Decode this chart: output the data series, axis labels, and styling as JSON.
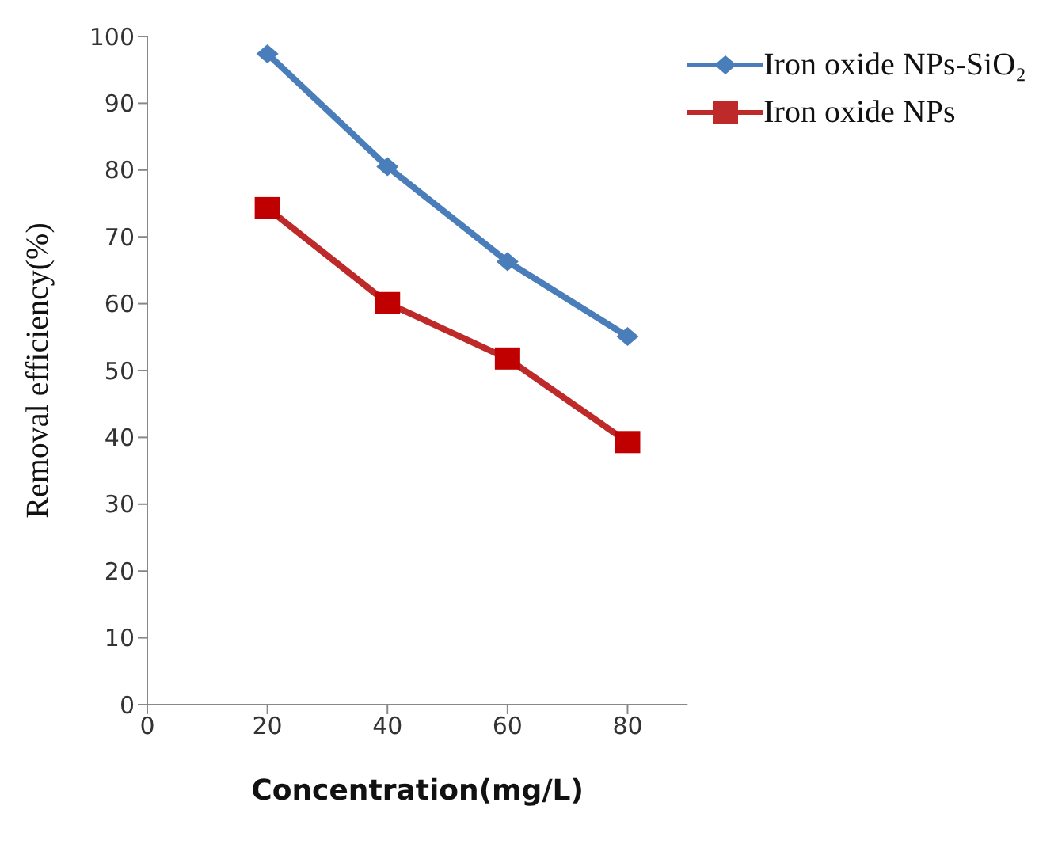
{
  "chart_data": {
    "type": "line",
    "xlabel": "Concentration(mg/L)",
    "ylabel": "Removal efficiency(%)",
    "x": [
      20,
      40,
      60,
      80
    ],
    "series": [
      {
        "name": "Iron oxide NPs-SiO₂",
        "color": "#4a7ebb",
        "values": [
          97.4,
          80.5,
          66.3,
          55.1
        ],
        "marker": "diamond"
      },
      {
        "name": "Iron oxide NPs",
        "color": "#be2a2a",
        "values": [
          74.3,
          60.1,
          51.8,
          39.3
        ],
        "marker": "square"
      }
    ],
    "xlim": [
      0,
      90
    ],
    "xticks": [
      0,
      20,
      40,
      60,
      80
    ],
    "ylim": [
      0,
      100
    ],
    "yticks": [
      0,
      10,
      20,
      30,
      40,
      50,
      60,
      70,
      80,
      90,
      100
    ],
    "grid": false,
    "legend": "top right"
  }
}
